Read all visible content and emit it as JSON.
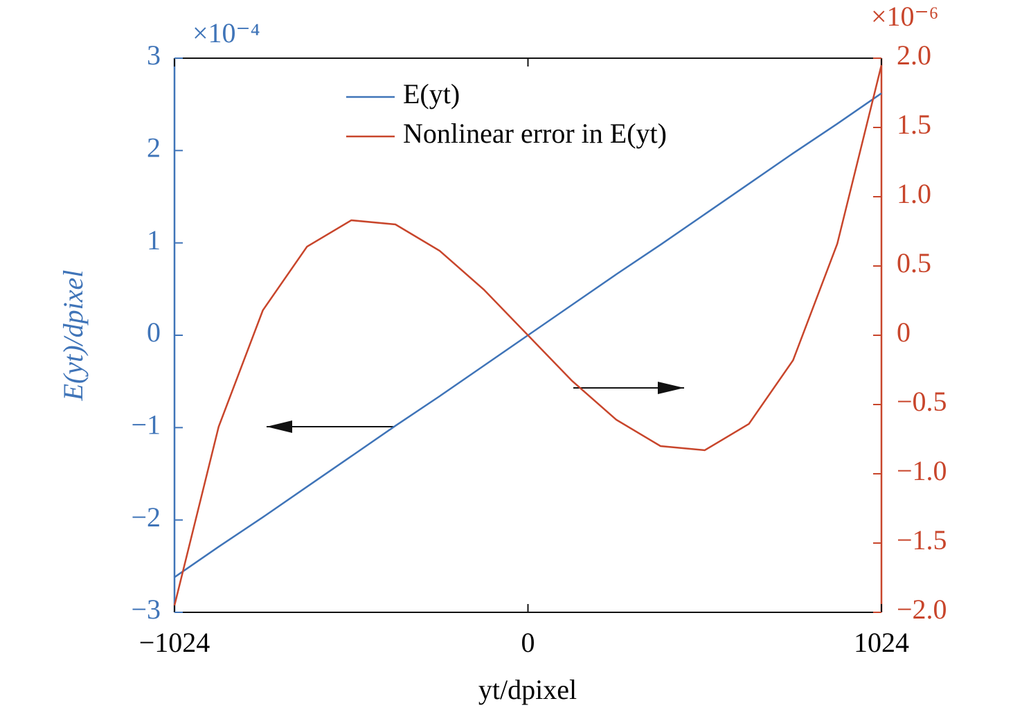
{
  "chart_data": {
    "type": "line",
    "xlabel": "yt/dpixel",
    "ylabel": "E(yt)/dpixel",
    "y_multiplier": "×10⁻⁴",
    "y2_multiplier": "×10⁻⁶",
    "x": [
      -1024,
      -896,
      -768,
      -640,
      -512,
      -384,
      -256,
      -128,
      0,
      128,
      256,
      384,
      512,
      640,
      768,
      896,
      1024
    ],
    "series": [
      {
        "name": "E(yt)",
        "color": "#3f74b8",
        "axis": "y",
        "values": [
          -2.62,
          -2.29,
          -1.97,
          -1.64,
          -1.31,
          -0.98,
          -0.66,
          -0.33,
          0,
          0.33,
          0.66,
          0.98,
          1.31,
          1.64,
          1.97,
          2.29,
          2.62
        ]
      },
      {
        "name": "Nonlinear error in E(yt)",
        "color": "#c8452b",
        "axis": "y2",
        "values": [
          -1.95,
          -0.66,
          0.18,
          0.64,
          0.83,
          0.8,
          0.61,
          0.33,
          0,
          -0.33,
          -0.61,
          -0.8,
          -0.83,
          -0.64,
          -0.18,
          0.66,
          1.95
        ]
      }
    ],
    "xlim": [
      -1024,
      1024
    ],
    "xticks": [
      {
        "value": -1024,
        "label": "−1024"
      },
      0,
      1024
    ],
    "ylim": [
      -3,
      3
    ],
    "yticks": [
      {
        "value": -3,
        "label": "−3"
      },
      {
        "value": -2,
        "label": "−2"
      },
      {
        "value": -1,
        "label": "−1"
      },
      0,
      1,
      2,
      3
    ],
    "y2lim": [
      -2,
      2
    ],
    "y2ticks": [
      {
        "value": -2,
        "label": "−2.0"
      },
      {
        "value": -1.5,
        "label": "−1.5"
      },
      {
        "value": -1,
        "label": "−1.0"
      },
      {
        "value": -0.5,
        "label": "−0.5"
      },
      0,
      0.5,
      {
        "value": 1,
        "label": "1.0"
      },
      1.5,
      {
        "value": 2,
        "label": "2.0"
      }
    ],
    "legend": "upper center"
  }
}
